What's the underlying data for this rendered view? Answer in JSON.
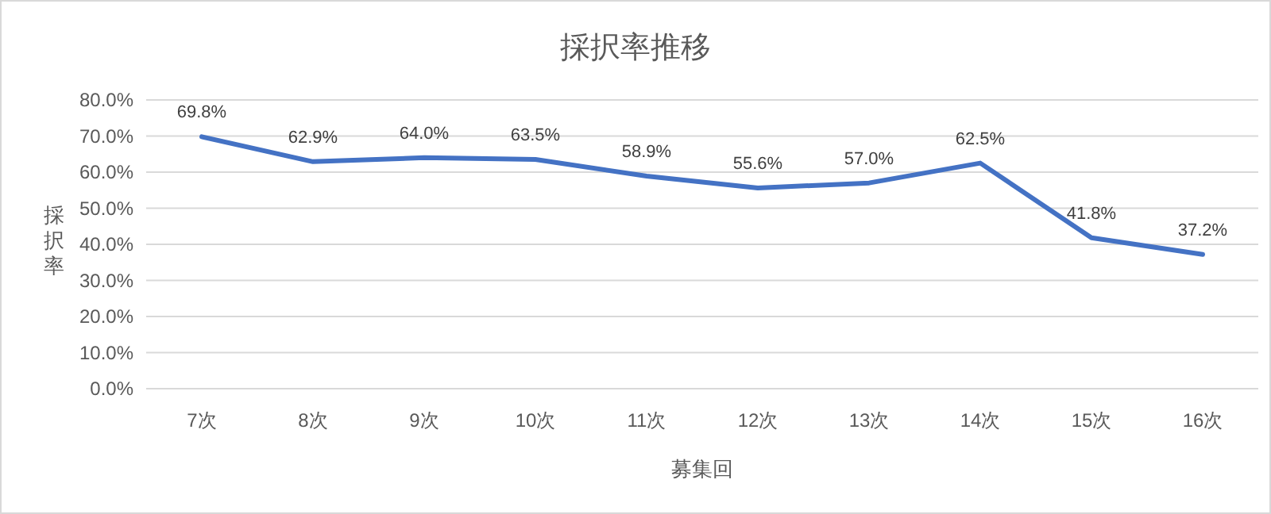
{
  "chart_data": {
    "type": "line",
    "title": "採択率推移",
    "xlabel": "募集回",
    "ylabel": "採択率",
    "categories": [
      "7次",
      "8次",
      "9次",
      "10次",
      "11次",
      "12次",
      "13次",
      "14次",
      "15次",
      "16次"
    ],
    "series": [
      {
        "color": "#4472c4",
        "values": [
          69.8,
          62.9,
          64.0,
          63.5,
          58.9,
          55.6,
          57.0,
          62.5,
          41.8,
          37.2
        ],
        "value_labels": [
          "69.8%",
          "62.9%",
          "64.0%",
          "63.5%",
          "58.9%",
          "55.6%",
          "57.0%",
          "62.5%",
          "41.8%",
          "37.2%"
        ]
      }
    ],
    "ylim": [
      0,
      80
    ],
    "yticks": [
      {
        "value": 0,
        "label": "0.0%"
      },
      {
        "value": 10,
        "label": "10.0%"
      },
      {
        "value": 20,
        "label": "20.0%"
      },
      {
        "value": 30,
        "label": "30.0%"
      },
      {
        "value": 40,
        "label": "40.0%"
      },
      {
        "value": 50,
        "label": "50.0%"
      },
      {
        "value": 60,
        "label": "60.0%"
      },
      {
        "value": 70,
        "label": "70.0%"
      },
      {
        "value": 80,
        "label": "80.0%"
      }
    ],
    "grid": "y",
    "marker": "none",
    "line_style": "solid"
  }
}
